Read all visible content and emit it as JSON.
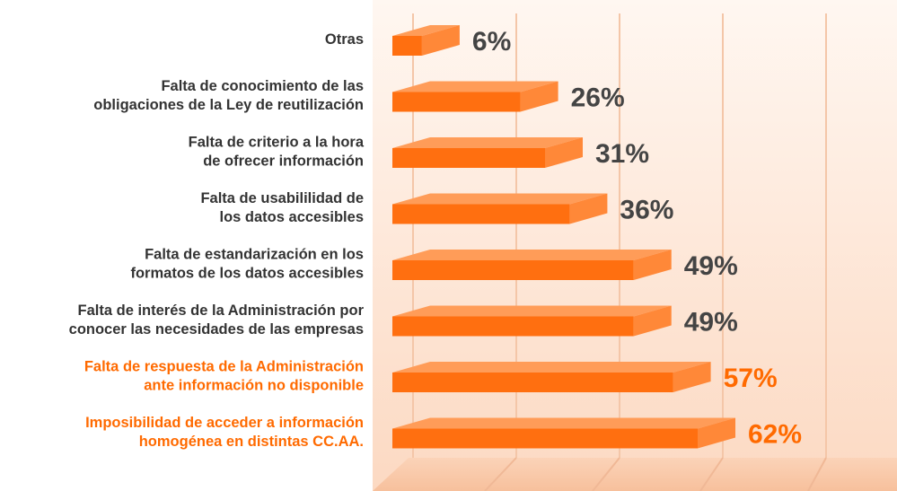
{
  "chart_data": {
    "type": "bar3d_horizontal",
    "categories": [
      [
        "Otras"
      ],
      [
        "Falta de conocimiento de las",
        "obligaciones de la Ley de reutilización"
      ],
      [
        "Falta de criterio a la hora",
        "de ofrecer información"
      ],
      [
        "Falta de usabililidad de",
        "los datos accesibles"
      ],
      [
        "Falta de estandarización en los",
        "formatos de los datos accesibles"
      ],
      [
        "Falta de interés de la Administración por",
        "conocer las necesidades de las empresas"
      ],
      [
        "Falta de respuesta de la Administración",
        "ante información no disponible"
      ],
      [
        "Imposibilidad de acceder a información",
        "homogénea en distintas CC.AA."
      ]
    ],
    "values": [
      6,
      26,
      31,
      36,
      49,
      49,
      57,
      62
    ],
    "value_labels": [
      "6%",
      "26%",
      "31%",
      "36%",
      "49%",
      "49%",
      "57%",
      "62%"
    ],
    "color": "#ff6f10",
    "label_colors": [
      "#333333",
      "#333333",
      "#333333",
      "#333333",
      "#333333",
      "#333333",
      "#ff6a00",
      "#ff6a00"
    ]
  }
}
